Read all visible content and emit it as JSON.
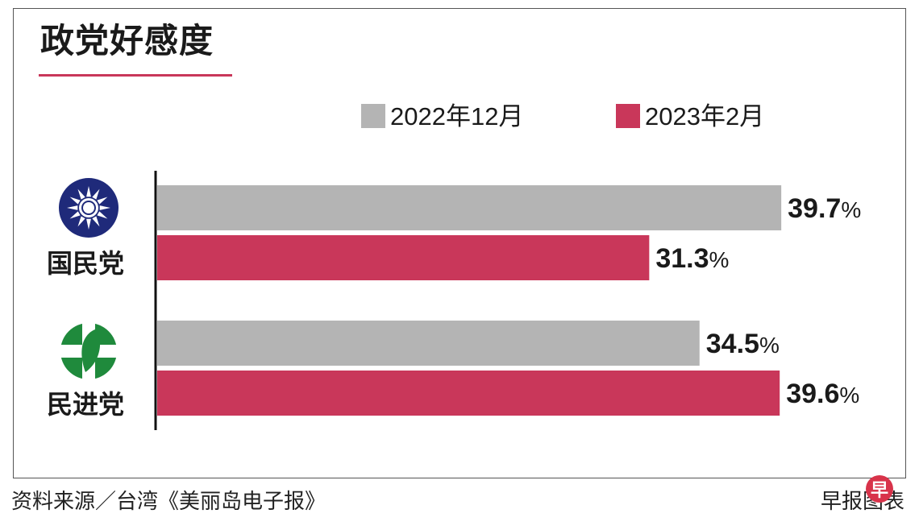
{
  "title": "政党好感度",
  "colors": {
    "series_2022": "#b4b4b4",
    "series_2023": "#c9375a",
    "kmt_blue": "#1f2a7a",
    "dpp_green": "#1f8a3c"
  },
  "legend": [
    {
      "label": "2022年12月",
      "color": "#b4b4b4"
    },
    {
      "label": "2023年2月",
      "color": "#c9375a"
    }
  ],
  "parties": [
    {
      "name": "国民党",
      "icon": "kmt-emblem-icon"
    },
    {
      "name": "民进党",
      "icon": "dpp-taiwan-icon"
    }
  ],
  "source": "资料来源／台湾《美丽岛电子报》",
  "credit": "早报图表",
  "logo_char": "早",
  "chart_data": {
    "type": "bar",
    "orientation": "horizontal",
    "title": "政党好感度",
    "categories": [
      "国民党",
      "民进党"
    ],
    "series": [
      {
        "name": "2022年12月",
        "values": [
          39.7,
          34.5
        ],
        "labels": [
          "39.7%",
          "34.5%"
        ]
      },
      {
        "name": "2023年2月",
        "values": [
          31.3,
          39.6
        ],
        "labels": [
          "31.3%",
          "39.6%"
        ]
      }
    ],
    "unit": "%",
    "xlim": [
      0,
      40
    ],
    "legend_position": "top",
    "grid": false
  }
}
